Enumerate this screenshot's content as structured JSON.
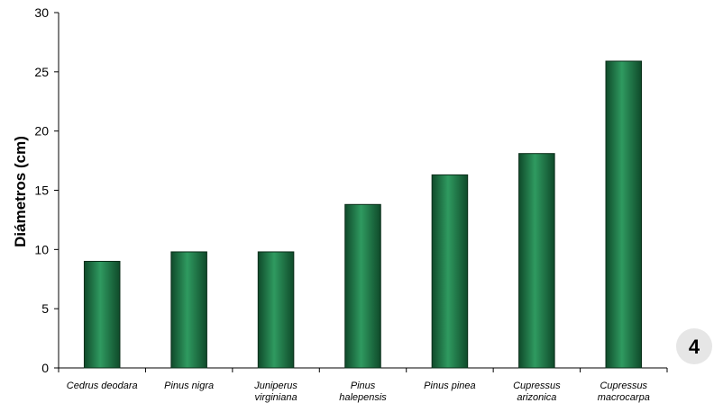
{
  "chart_data": {
    "type": "bar",
    "title": "",
    "xlabel": "",
    "ylabel": "Diámetros (cm)",
    "ylim": [
      0,
      30
    ],
    "yticks": [
      0,
      5,
      10,
      15,
      20,
      25,
      30
    ],
    "categories": [
      [
        "Cedrus deodara"
      ],
      [
        "Pinus nigra"
      ],
      [
        "Juniperus",
        "virginiana"
      ],
      [
        "Pinus",
        "halepensis"
      ],
      [
        "Pinus pinea"
      ],
      [
        "Cupressus",
        "arizonica"
      ],
      [
        "Cupressus",
        "macrocarpa"
      ]
    ],
    "values": [
      9.0,
      9.8,
      9.8,
      13.8,
      16.3,
      18.1,
      25.9
    ],
    "bar_color": "#2a8a55",
    "grid": false,
    "legend": "none"
  },
  "badge": {
    "label": "4",
    "color": "#e6e6e6"
  }
}
